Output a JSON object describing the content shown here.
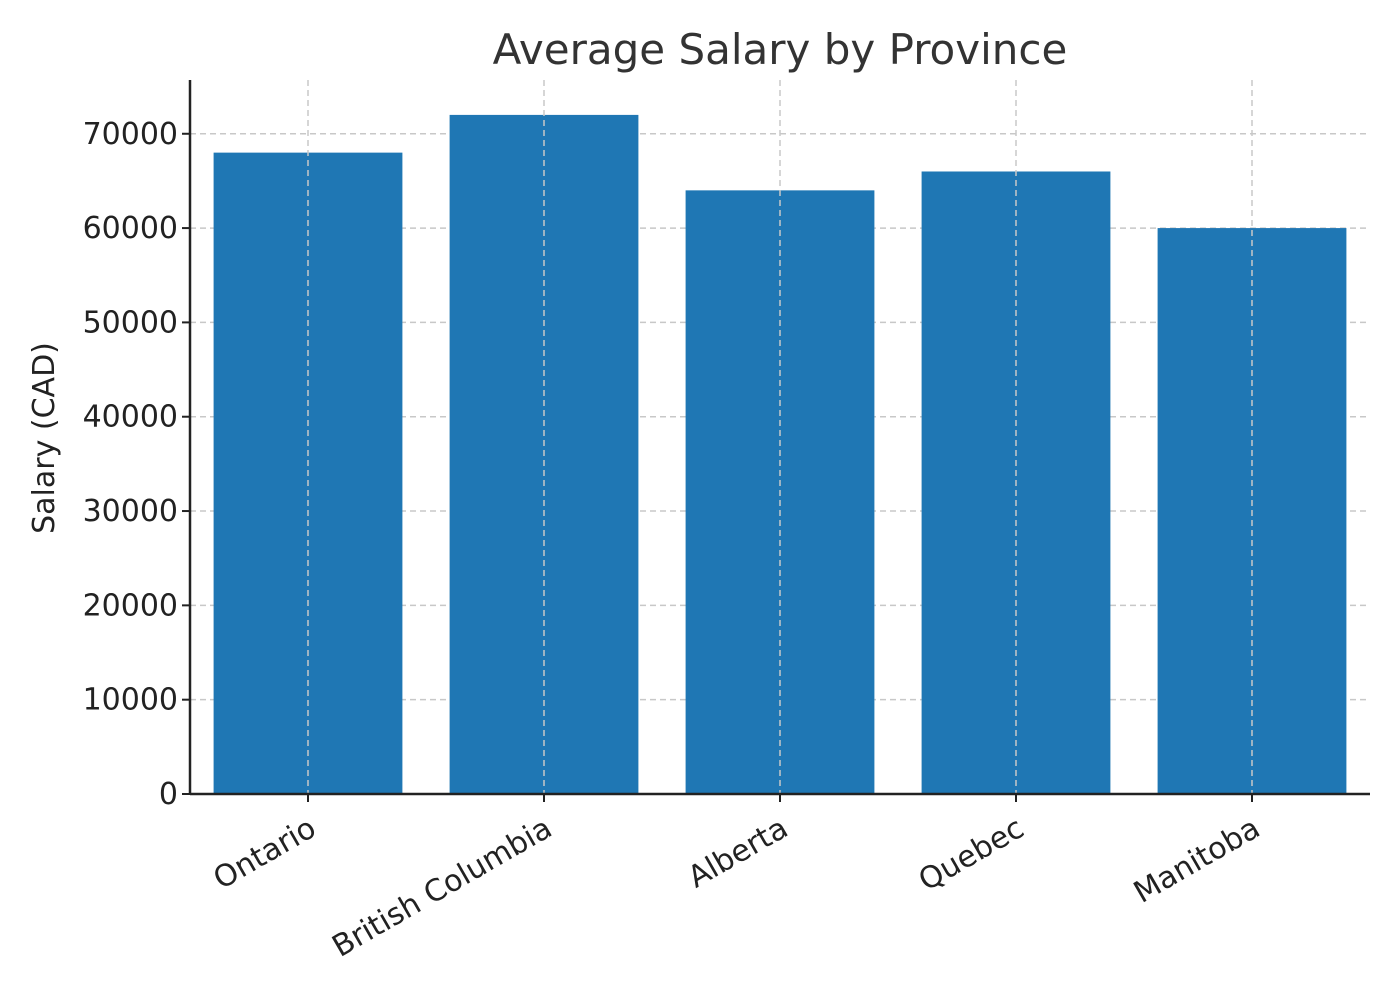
{
  "chart_data": {
    "type": "bar",
    "title": "Average Salary by Province",
    "xlabel": "",
    "ylabel": "Salary (CAD)",
    "categories": [
      "Ontario",
      "British Columbia",
      "Alberta",
      "Quebec",
      "Manitoba"
    ],
    "values": [
      68000,
      72000,
      64000,
      66000,
      60000
    ],
    "ylim": [
      0,
      75700
    ],
    "yticks": [
      0,
      10000,
      20000,
      30000,
      40000,
      50000,
      60000,
      70000
    ],
    "ytick_labels": [
      "0",
      "10000",
      "20000",
      "30000",
      "40000",
      "50000",
      "60000",
      "70000"
    ],
    "grid": true,
    "bar_color": "#1f77b4",
    "grid_color": "#c8c8c8",
    "axis_color": "#222222"
  }
}
